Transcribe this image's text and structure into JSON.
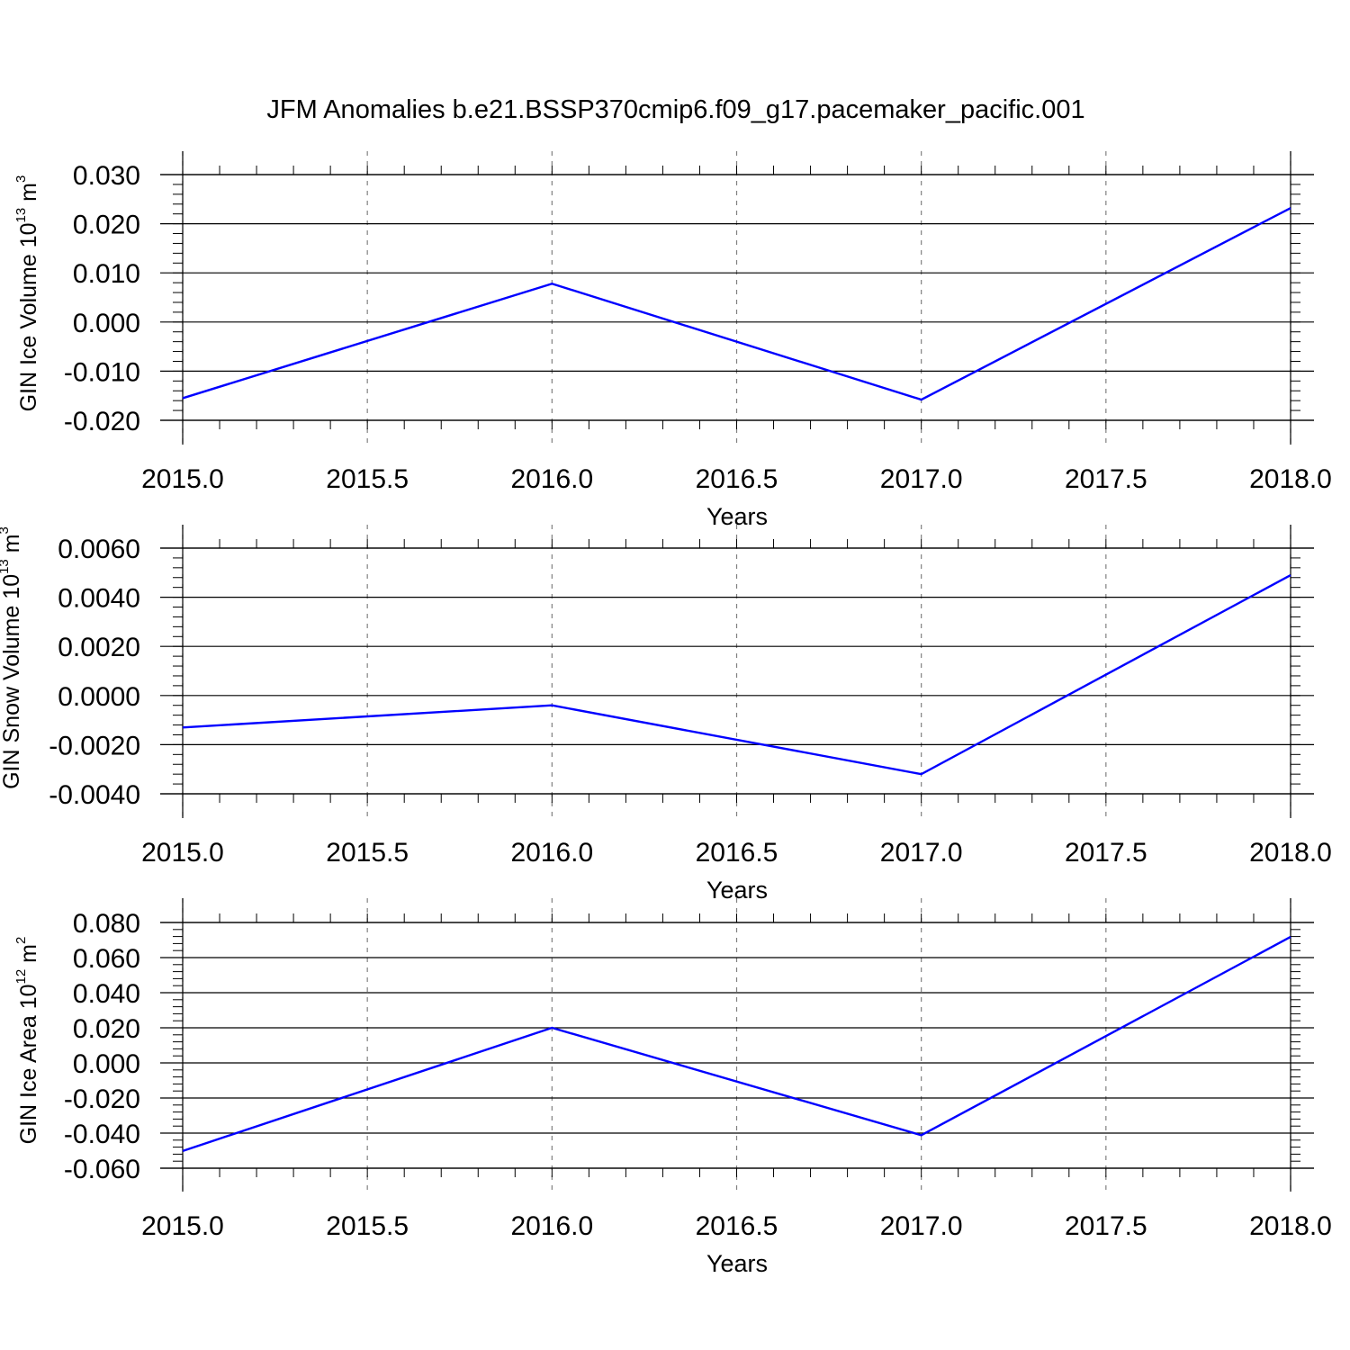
{
  "figure_title": "JFM Anomalies b.e21.BSSP370cmip6.f09_g17.pacemaker_pacific.001",
  "colors": {
    "line": "#0000ff",
    "axis": "#000000",
    "grid": "#808080",
    "background": "#ffffff"
  },
  "chart_data": [
    {
      "type": "line",
      "title": "",
      "xlabel": "Years",
      "ylabel": {
        "text": "GIN Ice Volume 10",
        "exponent": "13",
        "unit": " m",
        "unit_exponent": "3"
      },
      "xlim": [
        2015.0,
        2018.0
      ],
      "ylim": [
        -0.02,
        0.03
      ],
      "x_ticks": [
        "2015.0",
        "2015.5",
        "2016.0",
        "2016.5",
        "2017.0",
        "2017.5",
        "2018.0"
      ],
      "y_ticks": [
        "-0.020",
        "-0.010",
        "0.000",
        "0.010",
        "0.020",
        "0.030"
      ],
      "grid": "vertical dashed at major x ticks",
      "series": [
        {
          "x": [
            2015,
            2016,
            2017,
            2018
          ],
          "y": [
            -0.0155,
            0.0078,
            -0.0158,
            0.0232
          ]
        }
      ]
    },
    {
      "type": "line",
      "title": "",
      "xlabel": "Years",
      "ylabel": {
        "text": "GIN Snow Volume 10",
        "exponent": "13",
        "unit": " m",
        "unit_exponent": "3"
      },
      "xlim": [
        2015.0,
        2018.0
      ],
      "ylim": [
        -0.004,
        0.006
      ],
      "x_ticks": [
        "2015.0",
        "2015.5",
        "2016.0",
        "2016.5",
        "2017.0",
        "2017.5",
        "2018.0"
      ],
      "y_ticks": [
        "-0.0040",
        "-0.0020",
        "0.0000",
        "0.0020",
        "0.0040",
        "0.0060"
      ],
      "grid": "vertical dashed at major x ticks",
      "series": [
        {
          "x": [
            2015,
            2016,
            2017,
            2018
          ],
          "y": [
            -0.0013,
            -0.0004,
            -0.0032,
            0.0049
          ]
        }
      ]
    },
    {
      "type": "line",
      "title": "",
      "xlabel": "Years",
      "ylabel": {
        "text": "GIN Ice Area 10",
        "exponent": "12",
        "unit": " m",
        "unit_exponent": "2"
      },
      "xlim": [
        2015.0,
        2018.0
      ],
      "ylim": [
        -0.06,
        0.08
      ],
      "x_ticks": [
        "2015.0",
        "2015.5",
        "2016.0",
        "2016.5",
        "2017.0",
        "2017.5",
        "2018.0"
      ],
      "y_ticks": [
        "-0.060",
        "-0.040",
        "-0.020",
        "0.000",
        "0.020",
        "0.040",
        "0.060",
        "0.080"
      ],
      "grid": "vertical dashed at major x ticks",
      "series": [
        {
          "x": [
            2015,
            2016,
            2017,
            2018
          ],
          "y": [
            -0.0502,
            0.02,
            -0.0412,
            0.0718
          ]
        }
      ]
    }
  ]
}
